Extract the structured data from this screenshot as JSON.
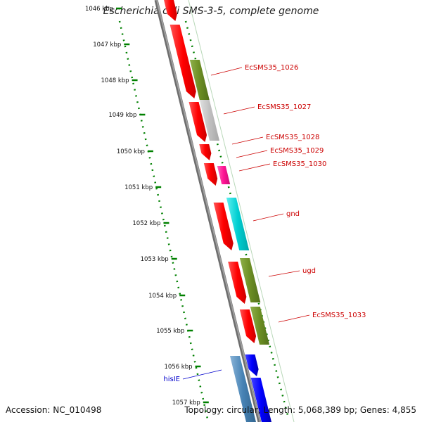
{
  "title": "Escherichia coli SMS-3-5, complete genome",
  "accession": "Accession: NC_010498",
  "summary": "Topology: circular; Length: 5,068,389 bp; Genes: 4,855",
  "ticks": [
    {
      "label": "1046 kbp"
    },
    {
      "label": "1047 kbp"
    },
    {
      "label": "1048 kbp"
    },
    {
      "label": "1049 kbp"
    },
    {
      "label": "1050 kbp"
    },
    {
      "label": "1051 kbp"
    },
    {
      "label": "1052 kbp"
    },
    {
      "label": "1053 kbp"
    },
    {
      "label": "1054 kbp"
    },
    {
      "label": "1055 kbp"
    },
    {
      "label": "1056 kbp"
    },
    {
      "label": "1057 kbp"
    }
  ],
  "features": [
    {
      "label": "EcSMS35_1026",
      "color": "#6b8e23"
    },
    {
      "label": "EcSMS35_1027",
      "color": "#c0c0c0"
    },
    {
      "label": "EcSMS35_1028",
      "color": "#ff0000"
    },
    {
      "label": "EcSMS35_1029",
      "color": "#ff0000"
    },
    {
      "label": "EcSMS35_1030",
      "color": "#ff1493"
    },
    {
      "label": "gnd",
      "color": "#00ced1"
    },
    {
      "label": "ugd",
      "color": "#6b8e23"
    },
    {
      "label": "EcSMS35_1033",
      "color": "#6b8e23"
    },
    {
      "label": "hisIE",
      "color": "#4682b4"
    }
  ],
  "colors": {
    "label_red": "#cc0000",
    "label_blue": "#0000cc",
    "tick_green": "#008000",
    "backbone": "#808080",
    "cds": "#ff0000"
  }
}
